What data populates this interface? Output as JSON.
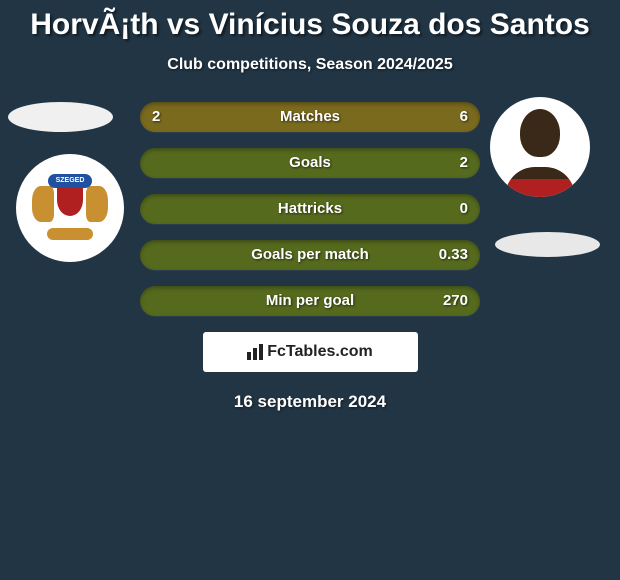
{
  "title": "HorvÃ¡th vs Vinícius Souza dos Santos",
  "subtitle": "Club competitions, Season 2024/2025",
  "club_banner_text": "SZEGED",
  "stat_rows": [
    {
      "left": "2",
      "label": "Matches",
      "right": "6",
      "bg": "#7a6a1e"
    },
    {
      "left": "",
      "label": "Goals",
      "right": "2",
      "bg": "#566a1e"
    },
    {
      "left": "",
      "label": "Hattricks",
      "right": "0",
      "bg": "#566a1e"
    },
    {
      "left": "",
      "label": "Goals per match",
      "right": "0.33",
      "bg": "#566a1e"
    },
    {
      "left": "",
      "label": "Min per goal",
      "right": "270",
      "bg": "#566a1e"
    }
  ],
  "fctables_label": "FcTables.com",
  "date": "16 september 2024",
  "colors": {
    "background": "#213544",
    "text": "#ffffff",
    "box_bg": "#ffffff",
    "box_text": "#222222"
  }
}
